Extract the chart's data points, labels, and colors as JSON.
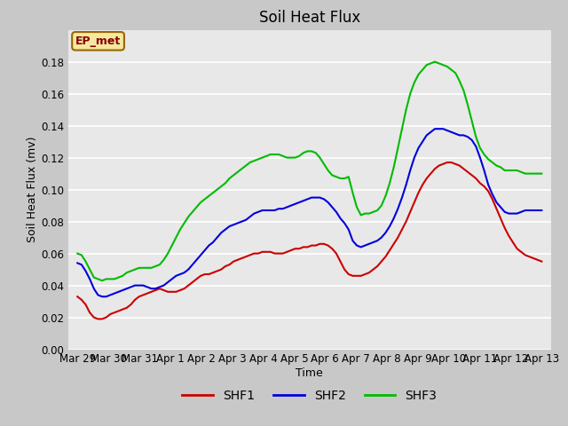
{
  "title": "Soil Heat Flux",
  "xlabel": "Time",
  "ylabel": "Soil Heat Flux (mv)",
  "ylim": [
    0.0,
    0.2
  ],
  "yticks": [
    0.0,
    0.02,
    0.04,
    0.06,
    0.08,
    0.1,
    0.12,
    0.14,
    0.16,
    0.18
  ],
  "annotation_text": "EP_met",
  "fig_bg_color": "#c8c8c8",
  "plot_bg_color": "#e8e8e8",
  "legend_labels": [
    "SHF1",
    "SHF2",
    "SHF3"
  ],
  "legend_colors": [
    "#cc0000",
    "#0000dd",
    "#00bb00"
  ],
  "xtick_labels": [
    "Mar 29",
    "Mar 30",
    "Mar 31",
    "Apr 1",
    "Apr 2",
    "Apr 3",
    "Apr 4",
    "Apr 5",
    "Apr 6",
    "Apr 7",
    "Apr 8",
    "Apr 9",
    "Apr 10",
    "Apr 11",
    "Apr 12",
    "Apr 13"
  ],
  "shf1": [
    0.033,
    0.031,
    0.028,
    0.023,
    0.02,
    0.019,
    0.019,
    0.02,
    0.022,
    0.023,
    0.024,
    0.025,
    0.026,
    0.028,
    0.031,
    0.033,
    0.034,
    0.035,
    0.036,
    0.037,
    0.038,
    0.037,
    0.036,
    0.036,
    0.036,
    0.037,
    0.038,
    0.04,
    0.042,
    0.044,
    0.046,
    0.047,
    0.047,
    0.048,
    0.049,
    0.05,
    0.052,
    0.053,
    0.055,
    0.056,
    0.057,
    0.058,
    0.059,
    0.06,
    0.06,
    0.061,
    0.061,
    0.061,
    0.06,
    0.06,
    0.06,
    0.061,
    0.062,
    0.063,
    0.063,
    0.064,
    0.064,
    0.065,
    0.065,
    0.066,
    0.066,
    0.065,
    0.063,
    0.06,
    0.055,
    0.05,
    0.047,
    0.046,
    0.046,
    0.046,
    0.047,
    0.048,
    0.05,
    0.052,
    0.055,
    0.058,
    0.062,
    0.066,
    0.07,
    0.075,
    0.08,
    0.086,
    0.092,
    0.098,
    0.103,
    0.107,
    0.11,
    0.113,
    0.115,
    0.116,
    0.117,
    0.117,
    0.116,
    0.115,
    0.113,
    0.111,
    0.109,
    0.107,
    0.104,
    0.102,
    0.099,
    0.094,
    0.088,
    0.082,
    0.076,
    0.071,
    0.067,
    0.063,
    0.061,
    0.059,
    0.058,
    0.057,
    0.056,
    0.055
  ],
  "shf2": [
    0.054,
    0.053,
    0.049,
    0.044,
    0.038,
    0.034,
    0.033,
    0.033,
    0.034,
    0.035,
    0.036,
    0.037,
    0.038,
    0.039,
    0.04,
    0.04,
    0.04,
    0.039,
    0.038,
    0.038,
    0.039,
    0.04,
    0.042,
    0.044,
    0.046,
    0.047,
    0.048,
    0.05,
    0.053,
    0.056,
    0.059,
    0.062,
    0.065,
    0.067,
    0.07,
    0.073,
    0.075,
    0.077,
    0.078,
    0.079,
    0.08,
    0.081,
    0.083,
    0.085,
    0.086,
    0.087,
    0.087,
    0.087,
    0.087,
    0.088,
    0.088,
    0.089,
    0.09,
    0.091,
    0.092,
    0.093,
    0.094,
    0.095,
    0.095,
    0.095,
    0.094,
    0.092,
    0.089,
    0.086,
    0.082,
    0.079,
    0.075,
    0.068,
    0.065,
    0.064,
    0.065,
    0.066,
    0.067,
    0.068,
    0.07,
    0.073,
    0.077,
    0.082,
    0.088,
    0.095,
    0.103,
    0.112,
    0.12,
    0.126,
    0.13,
    0.134,
    0.136,
    0.138,
    0.138,
    0.138,
    0.137,
    0.136,
    0.135,
    0.134,
    0.134,
    0.133,
    0.131,
    0.127,
    0.12,
    0.112,
    0.103,
    0.097,
    0.092,
    0.089,
    0.086,
    0.085,
    0.085,
    0.085,
    0.086,
    0.087,
    0.087,
    0.087,
    0.087,
    0.087
  ],
  "shf3": [
    0.06,
    0.059,
    0.055,
    0.05,
    0.045,
    0.044,
    0.043,
    0.044,
    0.044,
    0.044,
    0.045,
    0.046,
    0.048,
    0.049,
    0.05,
    0.051,
    0.051,
    0.051,
    0.051,
    0.052,
    0.053,
    0.056,
    0.06,
    0.065,
    0.07,
    0.075,
    0.079,
    0.083,
    0.086,
    0.089,
    0.092,
    0.094,
    0.096,
    0.098,
    0.1,
    0.102,
    0.104,
    0.107,
    0.109,
    0.111,
    0.113,
    0.115,
    0.117,
    0.118,
    0.119,
    0.12,
    0.121,
    0.122,
    0.122,
    0.122,
    0.121,
    0.12,
    0.12,
    0.12,
    0.121,
    0.123,
    0.124,
    0.124,
    0.123,
    0.12,
    0.116,
    0.112,
    0.109,
    0.108,
    0.107,
    0.107,
    0.108,
    0.098,
    0.089,
    0.084,
    0.085,
    0.085,
    0.086,
    0.087,
    0.09,
    0.096,
    0.104,
    0.114,
    0.126,
    0.138,
    0.15,
    0.16,
    0.167,
    0.172,
    0.175,
    0.178,
    0.179,
    0.18,
    0.179,
    0.178,
    0.177,
    0.175,
    0.173,
    0.168,
    0.162,
    0.153,
    0.143,
    0.133,
    0.126,
    0.122,
    0.119,
    0.117,
    0.115,
    0.114,
    0.112,
    0.112,
    0.112,
    0.112,
    0.111,
    0.11,
    0.11,
    0.11,
    0.11,
    0.11
  ]
}
